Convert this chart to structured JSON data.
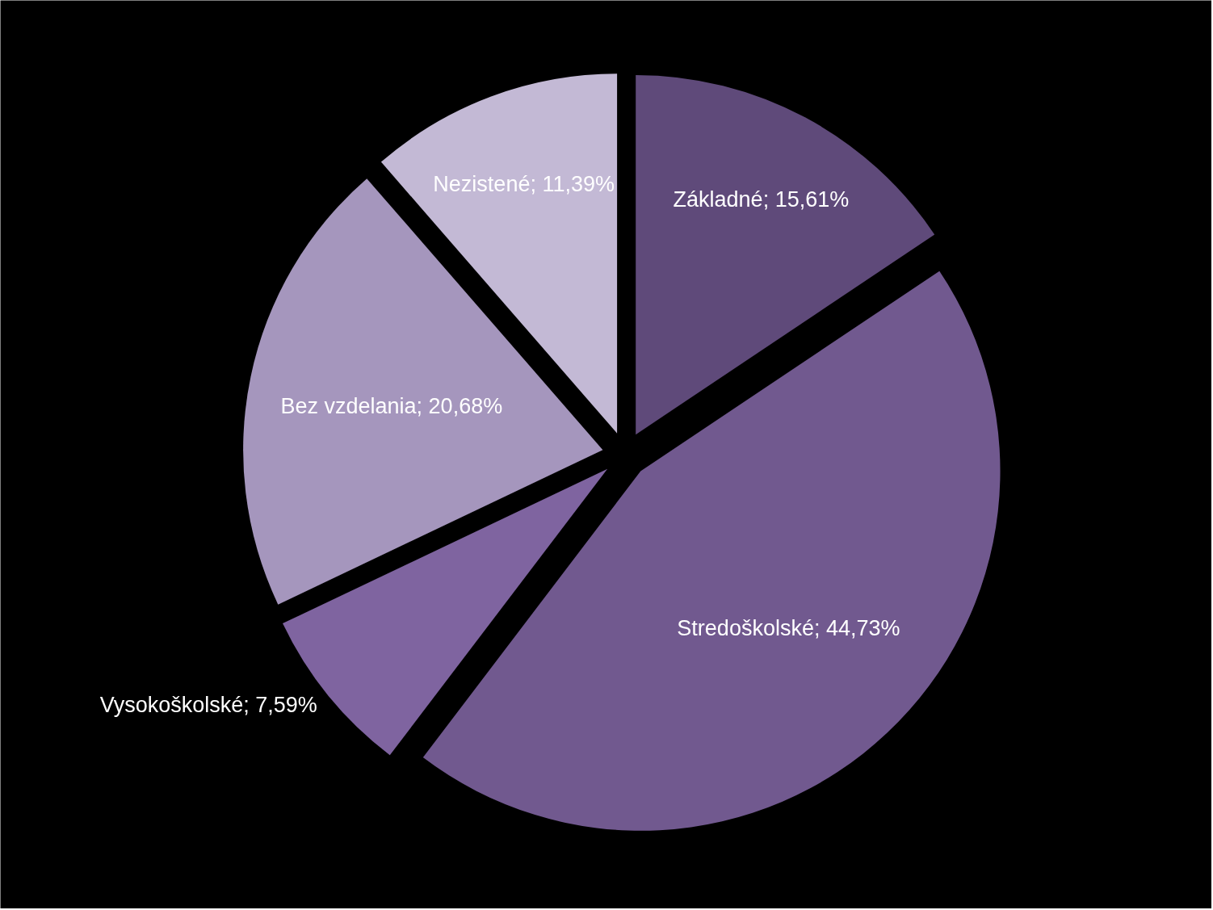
{
  "chart_data": {
    "type": "pie",
    "categories": [
      "Základné",
      "Stredoškolské",
      "Vysokoškolské",
      "Bez vzdelania",
      "Nezistené"
    ],
    "values": [
      15.61,
      44.73,
      7.59,
      20.68,
      11.39
    ],
    "value_labels": [
      "15,61%",
      "44,73%",
      "7,59%",
      "20,68%",
      "11,39%"
    ],
    "colors": [
      "#5f4a7a",
      "#71598f",
      "#7f64a0",
      "#a596bd",
      "#c3b9d5"
    ]
  }
}
